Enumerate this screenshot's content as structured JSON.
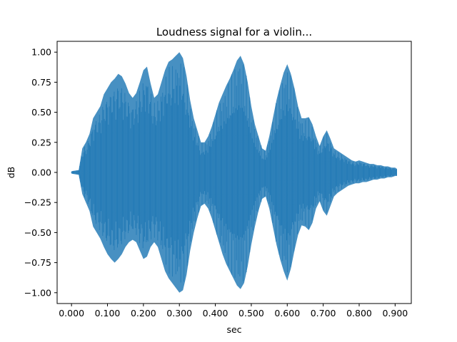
{
  "chart_data": {
    "type": "line",
    "title": "Loudness signal for a violin...",
    "xlabel": "sec",
    "ylabel": "dB",
    "xlim": [
      -0.04,
      0.945
    ],
    "ylim": [
      -1.09,
      1.09
    ],
    "xticks": [
      "0.000",
      "0.100",
      "0.200",
      "0.300",
      "0.400",
      "0.500",
      "0.600",
      "0.700",
      "0.800",
      "0.900"
    ],
    "yticks": [
      "1.00",
      "0.75",
      "0.50",
      "0.25",
      "0.00",
      "−0.25",
      "−0.50",
      "−0.75",
      "−1.00"
    ],
    "grid": false,
    "series": [
      {
        "color": "#1f77b4",
        "envelope": {
          "x": [
            0.0,
            0.02,
            0.03,
            0.04,
            0.05,
            0.06,
            0.07,
            0.08,
            0.09,
            0.1,
            0.11,
            0.12,
            0.13,
            0.14,
            0.15,
            0.16,
            0.17,
            0.18,
            0.19,
            0.2,
            0.21,
            0.22,
            0.23,
            0.24,
            0.25,
            0.26,
            0.27,
            0.28,
            0.29,
            0.3,
            0.31,
            0.32,
            0.33,
            0.34,
            0.35,
            0.36,
            0.37,
            0.38,
            0.39,
            0.4,
            0.41,
            0.42,
            0.43,
            0.44,
            0.45,
            0.46,
            0.47,
            0.48,
            0.49,
            0.5,
            0.51,
            0.52,
            0.53,
            0.54,
            0.55,
            0.56,
            0.57,
            0.58,
            0.59,
            0.6,
            0.61,
            0.62,
            0.63,
            0.64,
            0.65,
            0.66,
            0.67,
            0.68,
            0.69,
            0.7,
            0.71,
            0.72,
            0.73,
            0.74,
            0.75,
            0.76,
            0.77,
            0.78,
            0.79,
            0.8,
            0.81,
            0.82,
            0.83,
            0.84,
            0.85,
            0.86,
            0.87,
            0.88,
            0.89,
            0.9,
            0.905
          ],
          "upper": [
            0.01,
            0.02,
            0.2,
            0.25,
            0.32,
            0.45,
            0.5,
            0.55,
            0.65,
            0.7,
            0.75,
            0.78,
            0.82,
            0.8,
            0.74,
            0.66,
            0.62,
            0.66,
            0.75,
            0.85,
            0.88,
            0.74,
            0.62,
            0.65,
            0.75,
            0.85,
            0.92,
            0.94,
            0.97,
            1.0,
            0.95,
            0.8,
            0.6,
            0.45,
            0.35,
            0.25,
            0.25,
            0.3,
            0.38,
            0.48,
            0.58,
            0.65,
            0.72,
            0.78,
            0.85,
            0.93,
            0.97,
            0.9,
            0.75,
            0.55,
            0.4,
            0.3,
            0.2,
            0.18,
            0.3,
            0.45,
            0.6,
            0.72,
            0.83,
            0.9,
            0.82,
            0.7,
            0.55,
            0.45,
            0.45,
            0.46,
            0.4,
            0.3,
            0.22,
            0.3,
            0.35,
            0.28,
            0.2,
            0.18,
            0.16,
            0.14,
            0.12,
            0.1,
            0.09,
            0.1,
            0.09,
            0.08,
            0.07,
            0.07,
            0.06,
            0.06,
            0.05,
            0.05,
            0.04,
            0.04,
            0.03
          ],
          "lower": [
            -0.01,
            -0.02,
            -0.18,
            -0.25,
            -0.32,
            -0.45,
            -0.5,
            -0.55,
            -0.62,
            -0.68,
            -0.72,
            -0.75,
            -0.72,
            -0.68,
            -0.62,
            -0.58,
            -0.56,
            -0.58,
            -0.65,
            -0.72,
            -0.7,
            -0.62,
            -0.58,
            -0.62,
            -0.72,
            -0.82,
            -0.88,
            -0.92,
            -0.96,
            -1.0,
            -0.98,
            -0.85,
            -0.65,
            -0.5,
            -0.38,
            -0.28,
            -0.26,
            -0.3,
            -0.38,
            -0.48,
            -0.58,
            -0.68,
            -0.76,
            -0.82,
            -0.88,
            -0.94,
            -0.97,
            -0.92,
            -0.78,
            -0.6,
            -0.45,
            -0.32,
            -0.22,
            -0.2,
            -0.3,
            -0.45,
            -0.6,
            -0.72,
            -0.82,
            -0.9,
            -0.8,
            -0.65,
            -0.52,
            -0.44,
            -0.45,
            -0.48,
            -0.42,
            -0.3,
            -0.24,
            -0.32,
            -0.36,
            -0.28,
            -0.2,
            -0.17,
            -0.15,
            -0.13,
            -0.11,
            -0.1,
            -0.09,
            -0.09,
            -0.08,
            -0.08,
            -0.07,
            -0.06,
            -0.06,
            -0.05,
            -0.05,
            -0.04,
            -0.04,
            -0.03,
            -0.03
          ]
        }
      }
    ]
  }
}
